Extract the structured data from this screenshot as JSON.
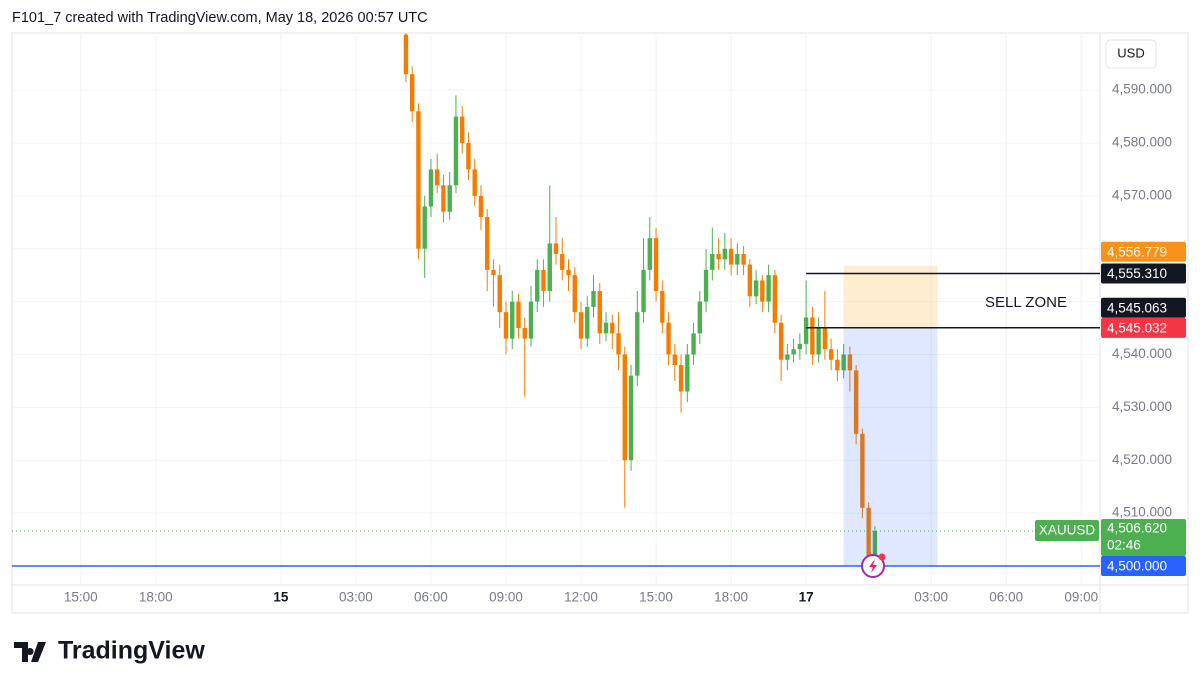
{
  "header": {
    "text": "F101_7 created with TradingView.com, May 18, 2026 00:57 UTC"
  },
  "chart_data": {
    "type": "candlestick",
    "symbol": "XAUUSD",
    "currency": "USD",
    "x": [
      13,
      13.25,
      13.5,
      13.75,
      14,
      14.25,
      14.5,
      14.75,
      15,
      15.25,
      15.5,
      15.75,
      16,
      16.25,
      16.5,
      16.75,
      17,
      17.25,
      17.5,
      17.75,
      18,
      18.25,
      18.5,
      18.75,
      19,
      19.25,
      19.5,
      19.75,
      20,
      20.25,
      20.5,
      20.75,
      21,
      21.25,
      21.5,
      21.75,
      22,
      22.25,
      22.5,
      22.75,
      23,
      23.25,
      23.5,
      23.75,
      24,
      24.25,
      24.5,
      24.75,
      25,
      25.25,
      25.5,
      25.75,
      26,
      26.25,
      26.5,
      26.75,
      27,
      27.25,
      27.5,
      27.75,
      28,
      28.25,
      28.5,
      28.75,
      29,
      29.25,
      29.5,
      29.75,
      30,
      30.25,
      30.5,
      30.75,
      31,
      31.25,
      31.5,
      31.75
    ],
    "open": [
      4600.5,
      4593,
      4586,
      4560,
      4568,
      4575,
      4572,
      4567,
      4572,
      4585,
      4580,
      4575,
      4570,
      4566,
      4556,
      4555,
      4548,
      4543,
      4550,
      4545,
      4543,
      4550,
      4556,
      4552,
      4561,
      4559,
      4556,
      4555,
      4548,
      4543,
      4549,
      4552,
      4544,
      4546,
      4544,
      4540,
      4520,
      4536,
      4548,
      4556,
      4562,
      4552,
      4546,
      4540,
      4538,
      4533,
      4540,
      4544,
      4550,
      4556,
      4559,
      4558,
      4560,
      4557,
      4559,
      4557,
      4551,
      4554,
      4550,
      4555,
      4546,
      4539,
      4540,
      4541,
      4542,
      4547,
      4540,
      4545,
      4541,
      4539,
      4537,
      4540,
      4537,
      4525,
      4511,
      4501
    ],
    "high": [
      4600.8,
      4594.5,
      4587.5,
      4570,
      4577,
      4578,
      4574,
      4574.5,
      4589,
      4587,
      4582,
      4577,
      4572,
      4567.5,
      4558,
      4557,
      4550,
      4552,
      4551.5,
      4547,
      4553,
      4558,
      4558,
      4572,
      4566,
      4562,
      4558,
      4556.5,
      4550,
      4551,
      4555,
      4553.5,
      4548,
      4547.5,
      4548,
      4541.5,
      4538,
      4552,
      4562,
      4566,
      4564,
      4554,
      4548,
      4542,
      4540,
      4542,
      4546,
      4552,
      4560,
      4564,
      4562,
      4563,
      4562,
      4561,
      4560.5,
      4558,
      4556,
      4555,
      4557,
      4556,
      4547.5,
      4542,
      4543,
      4544,
      4554,
      4549,
      4547,
      4552,
      4543,
      4541,
      4542,
      4541.5,
      4538,
      4526,
      4512,
      4507.5
    ],
    "low": [
      4591.5,
      4584,
      4558,
      4554.5,
      4566,
      4570.5,
      4565,
      4565.5,
      4570.5,
      4578,
      4573,
      4568,
      4563.5,
      4552,
      4549,
      4545,
      4540,
      4541,
      4543,
      4532,
      4541.5,
      4548,
      4549,
      4550,
      4557,
      4554,
      4552,
      4546,
      4541,
      4541.5,
      4547,
      4542,
      4542.5,
      4541,
      4537,
      4511,
      4518,
      4534,
      4546,
      4554,
      4550,
      4544,
      4538,
      4535,
      4529,
      4531,
      4538,
      4542,
      4548,
      4554,
      4556,
      4556,
      4555,
      4555,
      4555,
      4549,
      4549.5,
      4548,
      4548,
      4544,
      4535,
      4537,
      4538.5,
      4539,
      4540,
      4538,
      4538.5,
      4539,
      4537,
      4535,
      4535.5,
      4533,
      4523,
      4509,
      4498,
      4500
    ],
    "close": [
      4593,
      4586,
      4560,
      4568,
      4575,
      4572,
      4567,
      4572,
      4585,
      4580,
      4575,
      4570,
      4566,
      4556,
      4555,
      4548,
      4543,
      4550,
      4545,
      4543,
      4550,
      4556,
      4552,
      4561,
      4559,
      4556,
      4555,
      4548,
      4543,
      4549,
      4552,
      4544,
      4546,
      4544,
      4540,
      4520,
      4536,
      4548,
      4556,
      4562,
      4552,
      4546,
      4540,
      4538,
      4533,
      4540,
      4544,
      4550,
      4556,
      4559,
      4558,
      4560,
      4557,
      4559,
      4557,
      4551,
      4554,
      4550,
      4555,
      4546,
      4539,
      4540,
      4541,
      4542,
      4547,
      4540,
      4545,
      4541,
      4539,
      4537,
      4540,
      4537,
      4525,
      4511,
      4501,
      4506.62
    ],
    "up_color": "#4caf50",
    "down_color": "#f57c00",
    "xlim": [
      -2.75,
      40.75
    ],
    "xticks": [
      {
        "value": 0,
        "label": "15:00"
      },
      {
        "value": 3,
        "label": "18:00"
      },
      {
        "value": 8,
        "label": "15"
      },
      {
        "value": 11,
        "label": "03:00"
      },
      {
        "value": 14,
        "label": "06:00"
      },
      {
        "value": 17,
        "label": "09:00"
      },
      {
        "value": 20,
        "label": "12:00"
      },
      {
        "value": 23,
        "label": "15:00"
      },
      {
        "value": 26,
        "label": "18:00"
      },
      {
        "value": 29,
        "label": "17"
      },
      {
        "value": 34,
        "label": "03:00"
      },
      {
        "value": 37,
        "label": "06:00"
      },
      {
        "value": 40,
        "label": "09:00"
      }
    ],
    "ylim": [
      4496.4,
      4600.8
    ],
    "yticks": [
      {
        "value": 4510,
        "label": "4,510.000"
      },
      {
        "value": 4520,
        "label": "4,520.000"
      },
      {
        "value": 4530,
        "label": "4,530.000"
      },
      {
        "value": 4540,
        "label": "4,540.000"
      },
      {
        "value": 4550,
        "label": ""
      },
      {
        "value": 4560,
        "label": ""
      },
      {
        "value": 4570,
        "label": "4,570.000"
      },
      {
        "value": 4580,
        "label": "4,580.000"
      },
      {
        "value": 4590,
        "label": "4,590.000"
      }
    ],
    "grid": true,
    "horizontal_lines": [
      {
        "value": 4555.31,
        "label": "4,555.310",
        "start": 29
      },
      {
        "value": 4545.063,
        "label": "4,545.063",
        "start": 29
      }
    ],
    "position": {
      "label": "SELL ZONE",
      "entry": 4545.032,
      "entry_label": "4,545.032",
      "stop": 4556.779,
      "stop_label": "4,556.779",
      "target": 4500,
      "target_label": "4,500.000",
      "start": 30.5,
      "end": 34.25
    },
    "last_price": {
      "value": 4506.62,
      "label": "4,506.620",
      "countdown": "02:46"
    }
  },
  "footer": {
    "logo": "TradingView"
  }
}
